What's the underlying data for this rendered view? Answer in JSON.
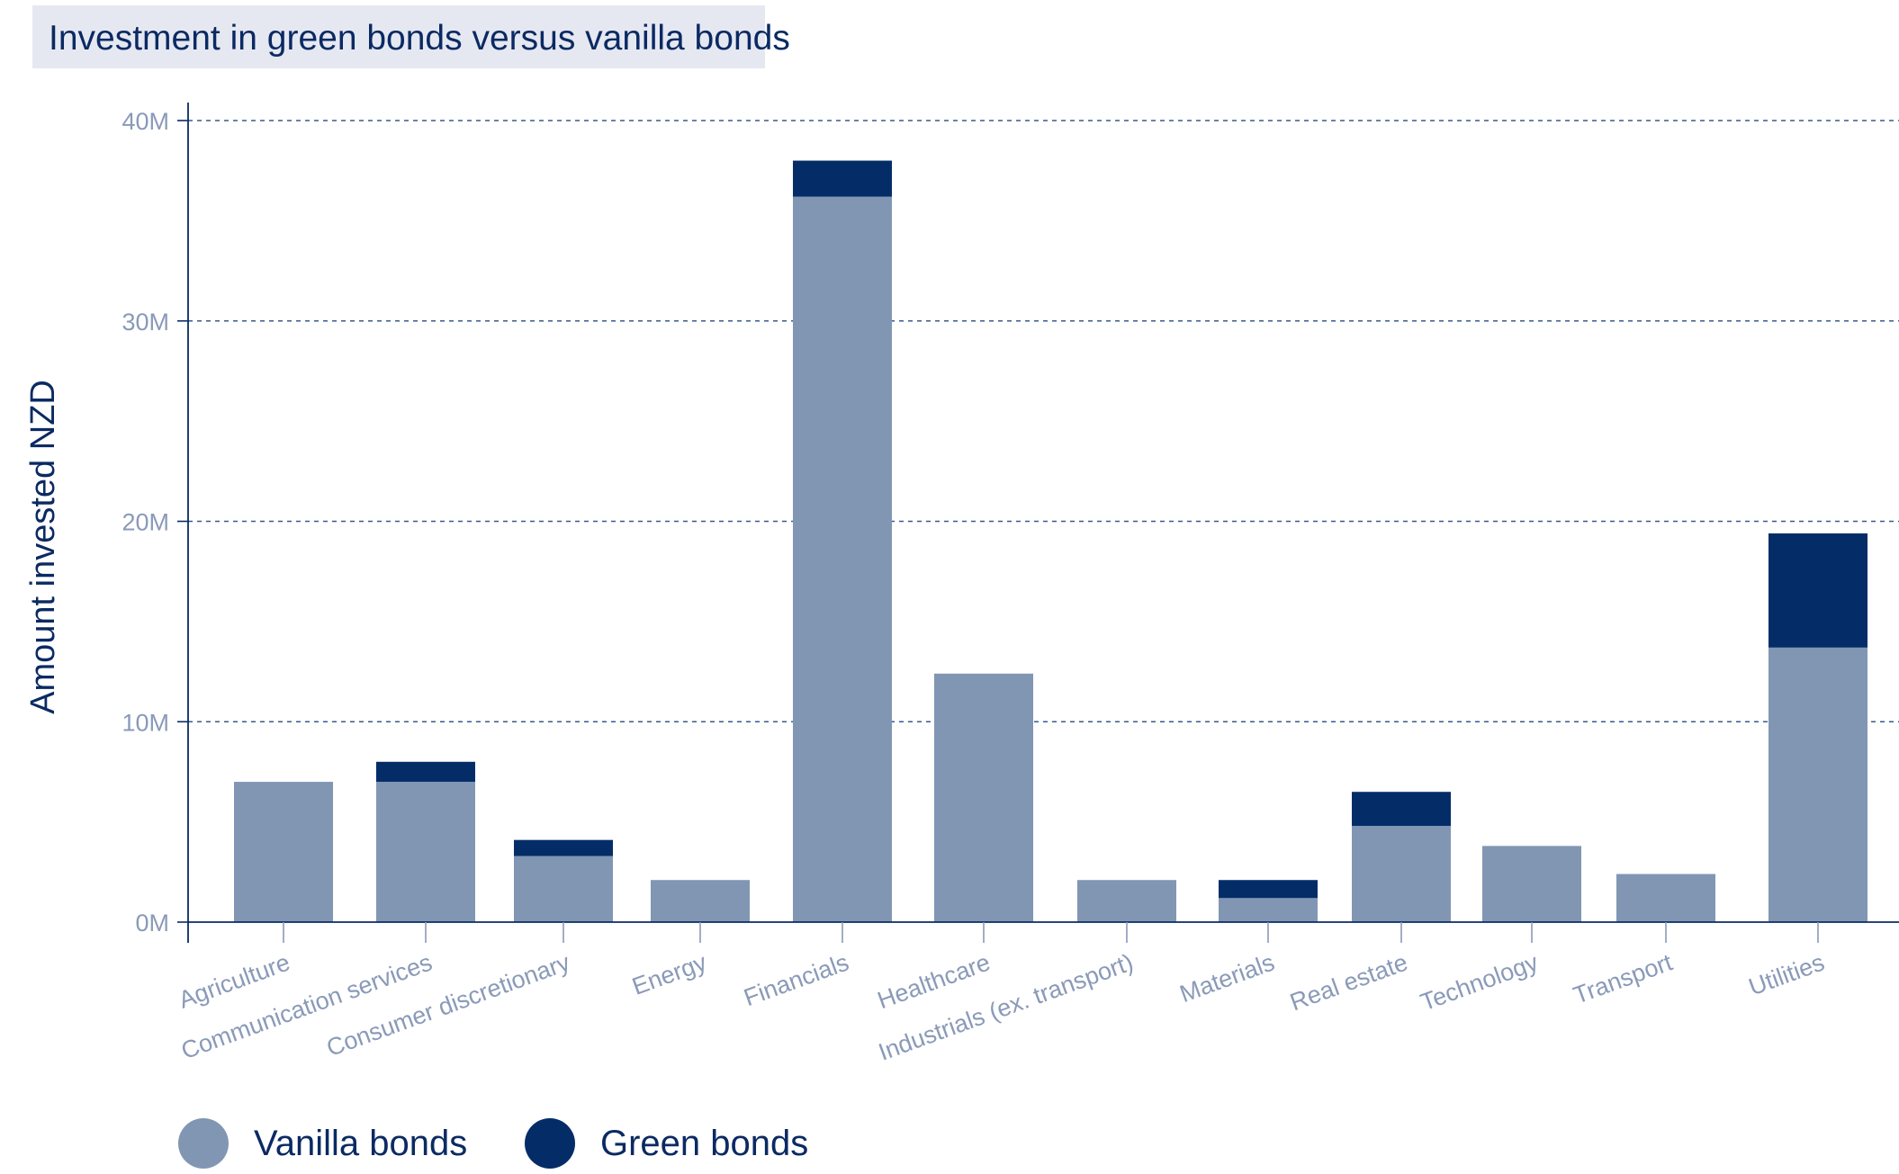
{
  "title": "Investment in green bonds versus vanilla bonds",
  "colors": {
    "vanilla": "#8196b3",
    "green": "#042d68",
    "text": "#0b2a63",
    "tick": "#8a9ab8",
    "grid": "#3a5a8a",
    "axis": "#0b2a63"
  },
  "legend": [
    {
      "label": "Vanilla bonds",
      "color": "#8196b3"
    },
    {
      "label": "Green bonds",
      "color": "#042d68"
    }
  ],
  "chart_data": {
    "type": "bar",
    "stacked": true,
    "title": "Investment in green bonds versus vanilla bonds",
    "xlabel": "",
    "ylabel": "Amount invested NZD",
    "ylim": [
      0,
      40000000
    ],
    "yticks": [
      {
        "value": 0,
        "label": "0M"
      },
      {
        "value": 10000000,
        "label": "10M"
      },
      {
        "value": 20000000,
        "label": "20M"
      },
      {
        "value": 30000000,
        "label": "30M"
      },
      {
        "value": 40000000,
        "label": "40M"
      }
    ],
    "grid": true,
    "legend_position": "bottom-left",
    "categories": [
      "Agriculture",
      "Communication services",
      "Consumer discretionary",
      "Energy",
      "Financials",
      "Healthcare",
      "Industrials (ex. transport)",
      "Materials",
      "Real estate",
      "Technology",
      "Transport",
      "Utilities"
    ],
    "series": [
      {
        "name": "Vanilla bonds",
        "values": [
          7000000,
          7000000,
          3300000,
          2100000,
          36200000,
          12400000,
          2100000,
          1200000,
          4800000,
          3800000,
          2400000,
          13700000
        ]
      },
      {
        "name": "Green bonds",
        "values": [
          0,
          1000000,
          800000,
          0,
          1800000,
          0,
          0,
          900000,
          1700000,
          0,
          0,
          5700000
        ]
      }
    ]
  }
}
